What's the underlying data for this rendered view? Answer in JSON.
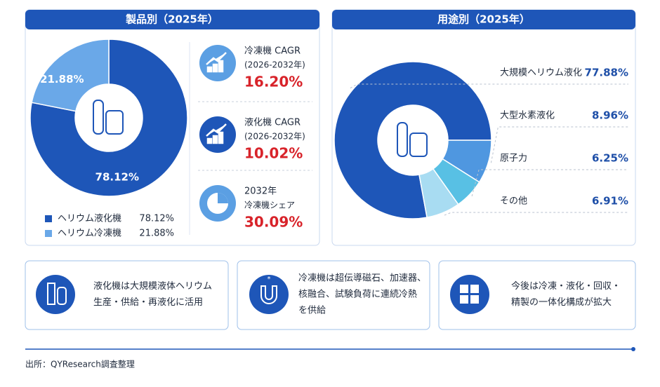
{
  "chart_data": [
    {
      "type": "donut",
      "title": "製品別（2025年）",
      "categories": [
        "ヘリウム液化機",
        "ヘリウム冷凍機"
      ],
      "values": [
        78.12,
        21.88
      ],
      "value_labels": [
        "78.12%",
        "21.88%"
      ],
      "colors": [
        "#1e56b8",
        "#6aa8e8"
      ],
      "legend": "bottom"
    },
    {
      "type": "donut",
      "title": "用途別（2025年）",
      "categories": [
        "大規模ヘリウム液化",
        "大型水素液化",
        "原子力",
        "その他"
      ],
      "values": [
        77.88,
        8.96,
        6.25,
        6.91
      ],
      "value_labels": [
        "77.88%",
        "8.96%",
        "6.25%",
        "6.91%"
      ],
      "colors": [
        "#1e56b8",
        "#4f97e0",
        "#58c0e4",
        "#a8dcf2"
      ],
      "legend": "right"
    }
  ],
  "kpis": [
    {
      "line1": "冷凍機 CAGR",
      "line2": "(2026-2032年)",
      "value": "16.20%"
    },
    {
      "line1": "液化機 CAGR",
      "line2": "(2026-2032年)",
      "value": "10.02%"
    },
    {
      "line1": "2032年",
      "line2": "冷凍機シェア",
      "value": "30.09%"
    }
  ],
  "notes": [
    [
      "液化機は大規模液体ヘリウム",
      "生産・供給・再液化に活用"
    ],
    [
      "冷凍機は超伝導磁石、加速器、",
      "核融合、試験負荷に連続冷熱",
      "を供給"
    ],
    [
      "今後は冷凍・液化・回収・",
      "精製の一体化構成が拡大"
    ]
  ],
  "source": "出所：QYResearch調査整理"
}
